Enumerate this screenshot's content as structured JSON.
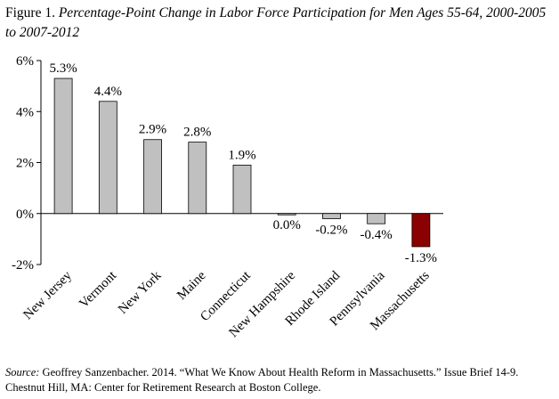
{
  "figure": {
    "label": "Figure 1.",
    "title": "Percentage-Point Change in Labor Force Participation for Men Ages 55-64, 2000-2005 to 2007-2012"
  },
  "source": {
    "label": "Source:",
    "text": "Geoffrey Sanzenbacher. 2014. “What We Know About Health Reform in Massachusetts.” Issue Brief 14-9. Chestnut Hill, MA: Center for Retirement Research at Boston College."
  },
  "chart_data": {
    "type": "bar",
    "categories": [
      "New Jersey",
      "Vermont",
      "New York",
      "Maine",
      "Connecticut",
      "New Hampshire",
      "Rhode Island",
      "Pennsylvania",
      "Massachusetts"
    ],
    "values": [
      5.3,
      4.4,
      2.9,
      2.8,
      1.9,
      0.0,
      -0.2,
      -0.4,
      -1.3
    ],
    "data_labels": [
      "5.3%",
      "4.4%",
      "2.9%",
      "2.8%",
      "1.9%",
      "0.0%",
      "-0.2%",
      "-0.4%",
      "-1.3%"
    ],
    "ylim": [
      -2,
      6
    ],
    "yticks": [
      -2,
      0,
      2,
      4,
      6
    ],
    "ytick_labels": [
      "-2%",
      "0%",
      "2%",
      "4%",
      "6%"
    ],
    "grid": false,
    "colors": {
      "default_bar": "#c0c0c0",
      "highlight_bar": "#8b0000",
      "bar_outline": "#000000"
    },
    "highlight_category": "Massachusetts"
  }
}
